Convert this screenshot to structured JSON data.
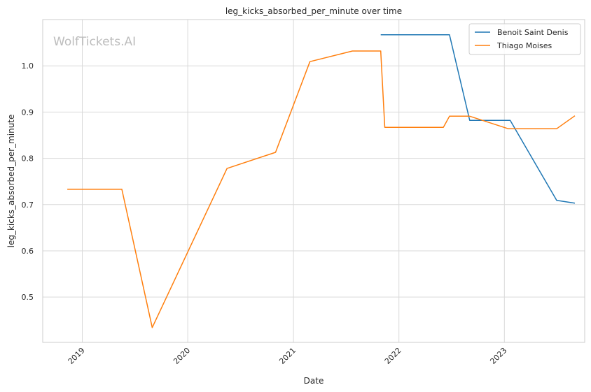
{
  "chart_data": {
    "type": "line",
    "title": "leg_kicks_absorbed_per_minute over time",
    "xlabel": "Date",
    "ylabel": "leg_kicks_absorbed_per_minute",
    "watermark": "WolfTickets.AI",
    "x_ticks": [
      "2019",
      "2020",
      "2021",
      "2022",
      "2023"
    ],
    "x_range": [
      "2018-08-17",
      "2023-10-06"
    ],
    "y_ticks": [
      0.5,
      0.6,
      0.7,
      0.8,
      0.9,
      1.0
    ],
    "ylim": [
      0.402,
      1.1
    ],
    "grid": true,
    "legend_position": "top-right",
    "series": [
      {
        "name": "Benoit Saint Denis",
        "color": "#1f77b4",
        "points": [
          [
            "2021-10-30",
            1.067
          ],
          [
            "2022-06-25",
            1.067
          ],
          [
            "2022-09-03",
            0.882
          ],
          [
            "2023-01-21",
            0.882
          ],
          [
            "2023-07-01",
            0.709
          ],
          [
            "2023-09-02",
            0.703
          ]
        ]
      },
      {
        "name": "Thiago Moises",
        "color": "#ff7f0e",
        "points": [
          [
            "2018-11-10",
            0.733
          ],
          [
            "2019-05-18",
            0.733
          ],
          [
            "2019-08-31",
            0.434
          ],
          [
            "2020-05-16",
            0.778
          ],
          [
            "2020-10-31",
            0.813
          ],
          [
            "2021-02-27",
            1.009
          ],
          [
            "2021-07-24",
            1.032
          ],
          [
            "2021-10-30",
            1.032
          ],
          [
            "2021-11-13",
            0.867
          ],
          [
            "2022-06-04",
            0.867
          ],
          [
            "2022-06-25",
            0.891
          ],
          [
            "2022-09-03",
            0.891
          ],
          [
            "2023-01-14",
            0.864
          ],
          [
            "2023-07-01",
            0.864
          ],
          [
            "2023-09-02",
            0.892
          ]
        ]
      }
    ]
  }
}
